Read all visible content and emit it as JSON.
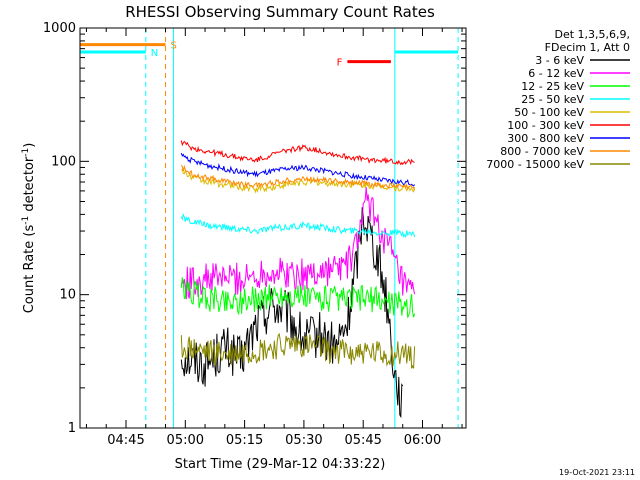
{
  "chart_data": {
    "type": "line",
    "title": "RHESSI Observing Summary Count Rates",
    "xlabel": "Start Time (29-Mar-12 04:33:22)",
    "ylabel_parts": [
      "Count Rate (s",
      "-1",
      " detector",
      "-1",
      ")"
    ],
    "yscale": "log",
    "ylim": [
      1,
      1000
    ],
    "xlim": [
      "04:33:22",
      "06:11:00"
    ],
    "y_ticks": [
      "1",
      "10",
      "100",
      "1000"
    ],
    "x_ticks": [
      "04:45",
      "05:00",
      "05:15",
      "05:30",
      "05:45",
      "06:00"
    ],
    "legend_header": [
      "Det 1,3,5,6,9,",
      "FDecim 1, Att 0"
    ],
    "series": [
      {
        "name": "3 - 6 keV",
        "color": "#000000",
        "x": [
          "04:59",
          "05:05",
          "05:10",
          "05:14",
          "05:18",
          "05:22",
          "05:26",
          "05:30",
          "05:34",
          "05:38",
          "05:41",
          "05:43",
          "05:45",
          "05:47",
          "05:49",
          "05:51",
          "05:53",
          "05:55"
        ],
        "y": [
          3.5,
          3,
          4,
          3.2,
          6,
          8.5,
          7,
          4.5,
          5,
          4,
          6,
          15,
          42,
          28,
          18,
          9,
          2.5,
          1.5
        ]
      },
      {
        "name": "6 - 12 keV",
        "color": "#ff00ff",
        "x": [
          "04:59",
          "05:05",
          "05:10",
          "05:15",
          "05:20",
          "05:25",
          "05:30",
          "05:35",
          "05:39",
          "05:42",
          "05:44",
          "05:46",
          "05:48",
          "05:50",
          "05:52",
          "05:54",
          "05:56",
          "05:58"
        ],
        "y": [
          12,
          13,
          13.5,
          13,
          15,
          14.5,
          14,
          15,
          16,
          18,
          30,
          52,
          38,
          28,
          21,
          14,
          10.5,
          10
        ]
      },
      {
        "name": "12 - 25 keV",
        "color": "#00ff00",
        "x": [
          "04:59",
          "05:05",
          "05:10",
          "05:15",
          "05:20",
          "05:25",
          "05:30",
          "05:35",
          "05:40",
          "05:45",
          "05:50",
          "05:55",
          "05:58"
        ],
        "y": [
          11,
          9.5,
          9,
          9,
          9.5,
          10,
          9.5,
          9.5,
          9,
          9.5,
          9,
          8.5,
          8
        ]
      },
      {
        "name": "25 - 50 keV",
        "color": "#00ffff",
        "x": [
          "04:59",
          "05:02",
          "05:06",
          "05:10",
          "05:14",
          "05:18",
          "05:22",
          "05:26",
          "05:30",
          "05:34",
          "05:38",
          "05:42",
          "05:46",
          "05:50",
          "05:54",
          "05:58"
        ],
        "y": [
          38,
          35,
          33,
          32,
          31,
          30,
          31.5,
          32,
          33,
          32,
          31,
          30,
          30,
          29,
          29,
          28.5
        ]
      },
      {
        "name": "50 - 100 keV",
        "color": "#ddbb00",
        "x": [
          "04:59",
          "05:02",
          "05:06",
          "05:10",
          "05:14",
          "05:18",
          "05:22",
          "05:26",
          "05:30",
          "05:34",
          "05:38",
          "05:42",
          "05:46",
          "05:50",
          "05:54",
          "05:58"
        ],
        "y": [
          85,
          75,
          70,
          67,
          64,
          62,
          64,
          67,
          70,
          69,
          68,
          67,
          66,
          65,
          63,
          62
        ]
      },
      {
        "name": "100 - 300 keV",
        "color": "#ff0000",
        "x": [
          "04:59",
          "05:02",
          "05:06",
          "05:10",
          "05:14",
          "05:18",
          "05:22",
          "05:26",
          "05:30",
          "05:34",
          "05:38",
          "05:42",
          "05:46",
          "05:50",
          "05:54",
          "05:58"
        ],
        "y": [
          140,
          125,
          118,
          112,
          106,
          102,
          112,
          122,
          127,
          120,
          112,
          107,
          103,
          101,
          99,
          98
        ]
      },
      {
        "name": "300 - 800 keV",
        "color": "#0000ff",
        "x": [
          "04:59",
          "05:02",
          "05:06",
          "05:10",
          "05:14",
          "05:18",
          "05:22",
          "05:26",
          "05:30",
          "05:34",
          "05:38",
          "05:42",
          "05:46",
          "05:50",
          "05:54",
          "05:58"
        ],
        "y": [
          112,
          100,
          93,
          88,
          83,
          80,
          84,
          88,
          90,
          86,
          82,
          78,
          75,
          72,
          70,
          68
        ]
      },
      {
        "name": "800 - 7000 keV",
        "color": "#ff8800",
        "x": [
          "04:59",
          "05:02",
          "05:06",
          "05:10",
          "05:14",
          "05:18",
          "05:22",
          "05:26",
          "05:30",
          "05:34",
          "05:38",
          "05:42",
          "05:46",
          "05:50",
          "05:54",
          "05:58"
        ],
        "y": [
          90,
          80,
          75,
          71,
          68,
          66,
          69,
          72,
          74,
          73,
          71,
          70,
          68,
          66,
          65,
          63
        ]
      },
      {
        "name": "7000 - 15000 keV",
        "color": "#888800",
        "x": [
          "04:59",
          "05:03",
          "05:07",
          "05:11",
          "05:15",
          "05:19",
          "05:23",
          "05:27",
          "05:31",
          "05:35",
          "05:39",
          "05:43",
          "05:47",
          "05:51",
          "05:55",
          "05:58"
        ],
        "y": [
          4,
          3.8,
          3.6,
          3.5,
          3.7,
          3.8,
          4,
          4.2,
          4.1,
          3.9,
          3.8,
          3.7,
          3.6,
          3.5,
          3.6,
          3.5
        ]
      }
    ],
    "annotations": [
      {
        "label": "",
        "color": "#ff8800",
        "y": 750,
        "x": [
          "04:33:22",
          "04:55"
        ]
      },
      {
        "label": "S",
        "color": "#ff8800",
        "y": 750,
        "x": [
          "04:55",
          "04:55"
        ]
      },
      {
        "label": "",
        "color": "#00ffff",
        "y": 660,
        "x": [
          "04:33:22",
          "04:50"
        ]
      },
      {
        "label": "N",
        "color": "#00ffff",
        "y": 660,
        "x": [
          "04:50",
          "04:50"
        ]
      },
      {
        "label": "",
        "color": "#00ffff",
        "y": 660,
        "x": [
          "05:53",
          "06:09"
        ]
      },
      {
        "label": "F",
        "color": "#ff0000",
        "y": 560,
        "x": [
          "05:41",
          "05:52"
        ]
      }
    ],
    "vlines": [
      {
        "color": "#00ffff",
        "style": "solid",
        "x": "04:33:22"
      },
      {
        "color": "#00ffff",
        "style": "dashed",
        "x": "04:50"
      },
      {
        "color": "#ff8800",
        "style": "dashed",
        "x": "04:55"
      },
      {
        "color": "#00ffff",
        "style": "solid",
        "x": "04:57"
      },
      {
        "color": "#00ffff",
        "style": "solid",
        "x": "05:53"
      },
      {
        "color": "#00ffff",
        "style": "dashed",
        "x": "06:09"
      }
    ],
    "footer_timestamp": "19-Oct-2021 23:11"
  }
}
